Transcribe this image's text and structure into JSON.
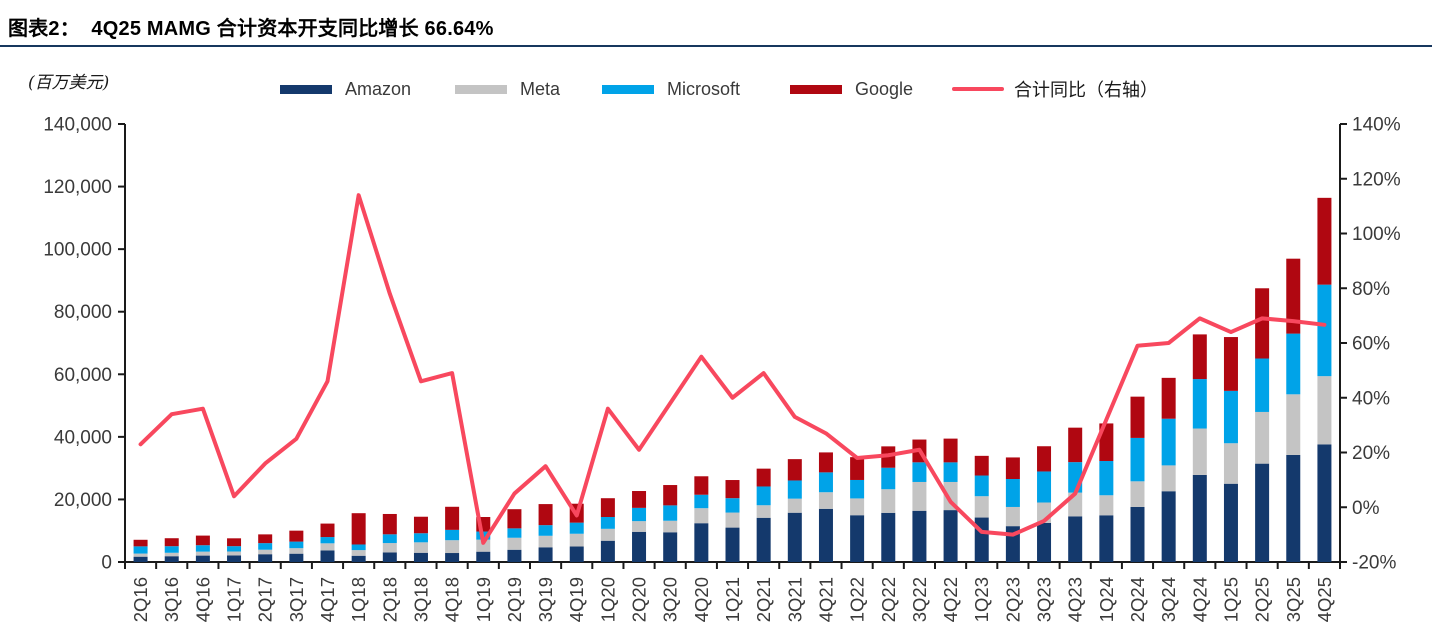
{
  "header": {
    "title": "图表2：  4Q25 MAMG 合计资本开支同比增长 66.64%"
  },
  "unit_label": "(百万美元)",
  "legend": [
    {
      "label": "Amazon",
      "color": "#14396C",
      "type": "box"
    },
    {
      "label": "Meta",
      "color": "#C4C4C4",
      "type": "box"
    },
    {
      "label": "Microsoft",
      "color": "#00A3E8",
      "type": "box"
    },
    {
      "label": "Google",
      "color": "#B00711",
      "type": "box"
    },
    {
      "label": "合计同比（右轴）",
      "color": "#F8485E",
      "type": "line"
    }
  ],
  "chart_data": {
    "type": "bar",
    "subtype": "stacked-bars-with-line",
    "title": "4Q25 MAMG 合计资本开支同比增长 66.64%",
    "unit": "百万美元",
    "grid": false,
    "legend_position": "top",
    "categories": [
      "2Q16",
      "3Q16",
      "4Q16",
      "1Q17",
      "2Q17",
      "3Q17",
      "4Q17",
      "1Q18",
      "2Q18",
      "3Q18",
      "4Q18",
      "1Q19",
      "2Q19",
      "3Q19",
      "4Q19",
      "1Q20",
      "2Q20",
      "3Q20",
      "4Q20",
      "1Q21",
      "2Q21",
      "3Q21",
      "4Q21",
      "1Q22",
      "2Q22",
      "3Q22",
      "4Q22",
      "1Q23",
      "2Q23",
      "3Q23",
      "4Q23",
      "1Q24",
      "2Q24",
      "3Q24",
      "4Q24",
      "1Q25",
      "2Q25",
      "3Q25",
      "4Q25"
    ],
    "series": [
      {
        "name": "Amazon",
        "color": "#14396C",
        "values": [
          1700,
          1850,
          2050,
          2090,
          2490,
          2660,
          3710,
          2000,
          3050,
          2950,
          2870,
          3300,
          3920,
          4700,
          4950,
          6800,
          9650,
          9500,
          12400,
          11000,
          14140,
          15750,
          17000,
          14950,
          15720,
          16380,
          16590,
          14210,
          11460,
          12480,
          14590,
          14930,
          17620,
          22620,
          27830,
          25020,
          31440,
          34230,
          37600
        ]
      },
      {
        "name": "Meta",
        "color": "#C4C4C4",
        "values": [
          1000,
          1100,
          1270,
          1270,
          1440,
          1760,
          2260,
          1800,
          3000,
          3340,
          4100,
          3840,
          3830,
          3680,
          4080,
          3810,
          3410,
          3690,
          4800,
          4800,
          4000,
          4500,
          5300,
          5370,
          7540,
          9200,
          8990,
          6820,
          6130,
          6540,
          7590,
          6400,
          8170,
          8260,
          14840,
          12940,
          16520,
          19370,
          21800
        ]
      },
      {
        "name": "Microsoft",
        "color": "#00A3E8",
        "values": [
          2300,
          2100,
          2040,
          1700,
          2100,
          2100,
          2000,
          1800,
          2800,
          2900,
          3300,
          2600,
          3000,
          3400,
          3550,
          3770,
          4240,
          4910,
          4300,
          4600,
          6000,
          5810,
          6350,
          5900,
          6870,
          6280,
          6270,
          6610,
          8940,
          9920,
          9740,
          10950,
          13870,
          14920,
          15800,
          16740,
          17080,
          19400,
          29250
        ]
      },
      {
        "name": "Google",
        "color": "#B00711",
        "values": [
          2100,
          2550,
          3080,
          2510,
          2800,
          3500,
          4310,
          10000,
          6500,
          5280,
          7380,
          4640,
          6130,
          6730,
          6050,
          6010,
          5390,
          6500,
          5900,
          5800,
          5700,
          6820,
          6380,
          7300,
          6830,
          7280,
          7590,
          6290,
          6890,
          8060,
          11020,
          12010,
          13190,
          13060,
          14280,
          17200,
          22450,
          23950,
          27750
        ]
      }
    ],
    "line_series": {
      "name": "合计同比（右轴）",
      "axis": "right",
      "color": "#F8485E",
      "values": [
        23,
        34,
        36,
        4,
        16,
        25,
        46,
        114,
        78,
        46,
        49,
        -13,
        5,
        15,
        -3,
        36,
        21,
        38,
        55,
        40,
        49,
        33,
        27,
        18,
        19,
        21,
        2,
        -9,
        -10,
        -5,
        5,
        32,
        59,
        60,
        69,
        64,
        69,
        68,
        66.64
      ]
    },
    "left_axis": {
      "min": 0,
      "max": 140000,
      "step": 20000,
      "tick_labels": [
        "0",
        "20,000",
        "40,000",
        "60,000",
        "80,000",
        "100,000",
        "120,000",
        "140,000"
      ]
    },
    "right_axis": {
      "min": -20,
      "max": 140,
      "step": 20,
      "tick_labels": [
        "-20%",
        "0%",
        "20%",
        "40%",
        "60%",
        "80%",
        "100%",
        "120%",
        "140%"
      ]
    }
  }
}
